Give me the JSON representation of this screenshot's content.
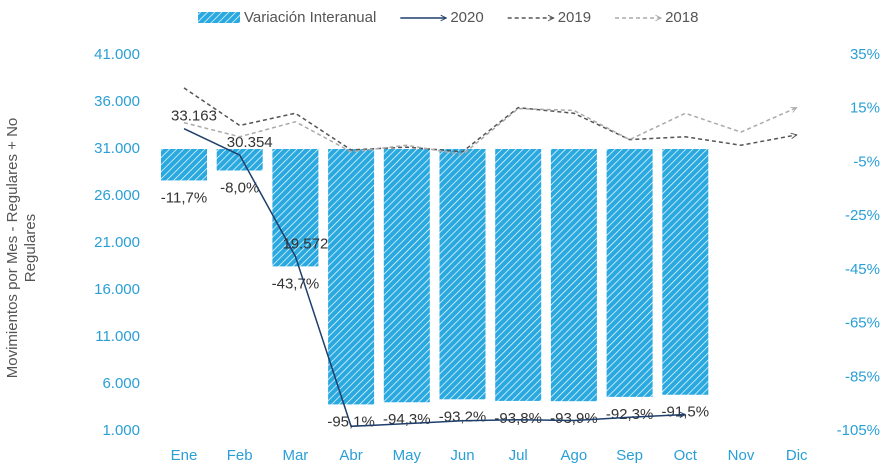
{
  "chart_data": {
    "type": "bar",
    "y_label": "Movimientos por Mes - Regulares + No Regulares",
    "categories": [
      "Ene",
      "Feb",
      "Mar",
      "Abr",
      "May",
      "Jun",
      "Jul",
      "Ago",
      "Sep",
      "Oct",
      "Nov",
      "Dic"
    ],
    "series": [
      {
        "name": "Variación Interanual",
        "type": "bar",
        "axis": "y2",
        "color": "#29a9e0",
        "values": [
          -11.7,
          -8.0,
          -43.7,
          -95.1,
          -94.3,
          -93.2,
          -93.8,
          -93.9,
          -92.3,
          -91.5,
          null,
          null
        ],
        "value_labels": [
          "-11,7%",
          "-8,0%",
          "-43,7%",
          "-95,1%",
          "-94,3%",
          "-93,2%",
          "-93,8%",
          "-93,9%",
          "-92,3%",
          "-91,5%",
          null,
          null
        ]
      },
      {
        "name": "2020",
        "type": "line",
        "color": "#1f3f6b",
        "dashed": false,
        "values": [
          33163,
          30354,
          19572,
          1500,
          1780,
          2090,
          2200,
          2120,
          2460,
          2750,
          null,
          null
        ],
        "value_labels": [
          "33.163",
          "30.354",
          "19.572",
          null,
          null,
          null,
          null,
          null,
          null,
          null,
          null,
          null
        ]
      },
      {
        "name": "2019",
        "type": "line",
        "color": "#555555",
        "dashed": true,
        "values": [
          37500,
          33500,
          34800,
          30900,
          31200,
          30700,
          35400,
          34800,
          32000,
          32300,
          31400,
          32500
        ]
      },
      {
        "name": "2018",
        "type": "line",
        "color": "#aaaaaa",
        "dashed": true,
        "values": [
          33800,
          32300,
          33900,
          30700,
          31400,
          30400,
          35300,
          35100,
          32000,
          34800,
          32800,
          35400
        ]
      }
    ],
    "ylim": [
      1000,
      41000
    ],
    "yticks": [
      {
        "value": 1000,
        "label": "1.000"
      },
      {
        "value": 6000,
        "label": "6.000"
      },
      {
        "value": 11000,
        "label": "11.000"
      },
      {
        "value": 16000,
        "label": "16.000"
      },
      {
        "value": 21000,
        "label": "21.000"
      },
      {
        "value": 26000,
        "label": "26.000"
      },
      {
        "value": 31000,
        "label": "31.000"
      },
      {
        "value": 36000,
        "label": "36.000"
      },
      {
        "value": 41000,
        "label": "41.000"
      }
    ],
    "y2lim": [
      -105,
      35
    ],
    "y2ticks": [
      {
        "value": -105,
        "label": "-105%"
      },
      {
        "value": -85,
        "label": "-85%"
      },
      {
        "value": -65,
        "label": "-65%"
      },
      {
        "value": -45,
        "label": "-45%"
      },
      {
        "value": -25,
        "label": "-25%"
      },
      {
        "value": -5,
        "label": "-5%"
      },
      {
        "value": 15,
        "label": "15%"
      },
      {
        "value": 35,
        "label": "35%"
      }
    ],
    "legend": "top",
    "grid": false
  }
}
